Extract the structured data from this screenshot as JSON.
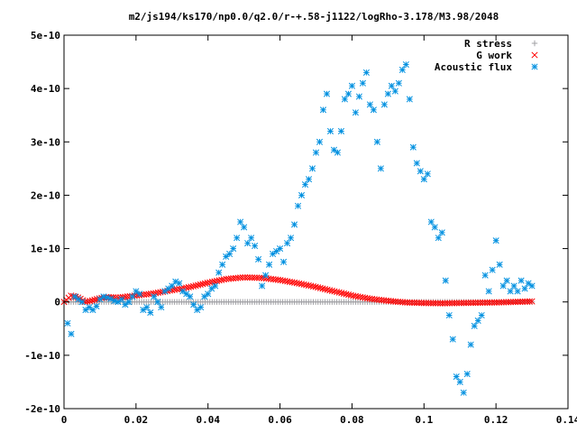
{
  "chart_data": {
    "type": "scatter",
    "title": "m2/js194/ks170/np0.0/q2.0/r-+.58-j1122/logRho-3.178/M3.98/2048",
    "xlabel": "",
    "ylabel": "",
    "xlim": [
      0,
      0.14
    ],
    "ylim": [
      -2e-10,
      5e-10
    ],
    "x_ticks": [
      {
        "value": 0,
        "label": "0"
      },
      {
        "value": 0.02,
        "label": "0.02"
      },
      {
        "value": 0.04,
        "label": "0.04"
      },
      {
        "value": 0.06,
        "label": "0.06"
      },
      {
        "value": 0.08,
        "label": "0.08"
      },
      {
        "value": 0.1,
        "label": "0.1"
      },
      {
        "value": 0.12,
        "label": "0.12"
      },
      {
        "value": 0.14,
        "label": "0.14"
      }
    ],
    "y_ticks": [
      {
        "value": -2e-10,
        "label": "-2e-10"
      },
      {
        "value": -1e-10,
        "label": "-1e-10"
      },
      {
        "value": 0,
        "label": "0"
      },
      {
        "value": 1e-10,
        "label": "1e-10"
      },
      {
        "value": 2e-10,
        "label": "2e-10"
      },
      {
        "value": 3e-10,
        "label": "3e-10"
      },
      {
        "value": 4e-10,
        "label": "4e-10"
      },
      {
        "value": 5e-10,
        "label": "5e-10"
      }
    ],
    "grid": false,
    "legend_position": "top-right",
    "series": [
      {
        "name": "R stress",
        "marker": "plus",
        "color": "#a0a0a4",
        "x_range": [
          0,
          0.13
        ],
        "n_points": 200,
        "y_constant": 0
      },
      {
        "name": "G work",
        "marker": "cross",
        "color": "#ff0000",
        "x": [
          0,
          0.002,
          0.004,
          0.006,
          0.008,
          0.01,
          0.012,
          0.015,
          0.02,
          0.025,
          0.03,
          0.035,
          0.04,
          0.045,
          0.05,
          0.055,
          0.06,
          0.065,
          0.07,
          0.075,
          0.08,
          0.085,
          0.09,
          0.095,
          0.1,
          0.105,
          0.11,
          0.115,
          0.12,
          0.125,
          0.13
        ],
        "y": [
          0,
          1.2e-11,
          8e-12,
          0,
          3e-12,
          7e-12,
          9e-12,
          8e-12,
          1.2e-11,
          1.6e-11,
          2.2e-11,
          2.8e-11,
          3.6e-11,
          4.3e-11,
          4.6e-11,
          4.5e-11,
          4.1e-11,
          3.5e-11,
          2.8e-11,
          2e-11,
          1.2e-11,
          6e-12,
          2e-12,
          -1e-12,
          -2e-12,
          -2.5e-12,
          -2e-12,
          -1.5e-12,
          -1e-12,
          0,
          1e-12
        ],
        "n_points": 200
      },
      {
        "name": "Acoustic flux",
        "marker": "star",
        "color": "#0090e0",
        "x": [
          0.001,
          0.002,
          0.003,
          0.004,
          0.005,
          0.006,
          0.007,
          0.008,
          0.009,
          0.01,
          0.011,
          0.012,
          0.013,
          0.014,
          0.015,
          0.016,
          0.017,
          0.018,
          0.019,
          0.02,
          0.021,
          0.022,
          0.023,
          0.024,
          0.025,
          0.026,
          0.027,
          0.028,
          0.029,
          0.03,
          0.031,
          0.032,
          0.033,
          0.034,
          0.035,
          0.036,
          0.037,
          0.038,
          0.039,
          0.04,
          0.041,
          0.042,
          0.043,
          0.044,
          0.045,
          0.046,
          0.047,
          0.048,
          0.049,
          0.05,
          0.051,
          0.052,
          0.053,
          0.054,
          0.055,
          0.056,
          0.057,
          0.058,
          0.059,
          0.06,
          0.061,
          0.062,
          0.063,
          0.064,
          0.065,
          0.066,
          0.067,
          0.068,
          0.069,
          0.07,
          0.071,
          0.072,
          0.073,
          0.074,
          0.075,
          0.076,
          0.077,
          0.078,
          0.079,
          0.08,
          0.081,
          0.082,
          0.083,
          0.084,
          0.085,
          0.086,
          0.087,
          0.088,
          0.089,
          0.09,
          0.091,
          0.092,
          0.093,
          0.094,
          0.095,
          0.096,
          0.097,
          0.098,
          0.099,
          0.1,
          0.101,
          0.102,
          0.103,
          0.104,
          0.105,
          0.106,
          0.107,
          0.108,
          0.109,
          0.11,
          0.111,
          0.112,
          0.113,
          0.114,
          0.115,
          0.116,
          0.117,
          0.118,
          0.119,
          0.12,
          0.121,
          0.122,
          0.123,
          0.124,
          0.125,
          0.126,
          0.127,
          0.128,
          0.129,
          0.13
        ],
        "y": [
          -4e-11,
          -6e-11,
          1e-11,
          5e-12,
          0,
          -1.5e-11,
          -1e-11,
          -1.5e-11,
          -8e-12,
          5e-12,
          1e-11,
          8e-12,
          6e-12,
          2e-12,
          0,
          5e-12,
          -5e-12,
          0,
          1e-11,
          2e-11,
          1.5e-11,
          -1.5e-11,
          -1e-11,
          -2e-11,
          1e-11,
          0,
          -1e-11,
          2e-11,
          2.5e-11,
          3e-11,
          3.8e-11,
          3.5e-11,
          2e-11,
          1.5e-11,
          1e-11,
          -5e-12,
          -1.5e-11,
          -1e-11,
          1e-11,
          1.5e-11,
          2.5e-11,
          3e-11,
          5.5e-11,
          7e-11,
          8.5e-11,
          9e-11,
          1e-10,
          1.2e-10,
          1.5e-10,
          1.4e-10,
          1.1e-10,
          1.2e-10,
          1.05e-10,
          8e-11,
          3e-11,
          5e-11,
          7e-11,
          9e-11,
          9.5e-11,
          1e-10,
          7.5e-11,
          1.1e-10,
          1.2e-10,
          1.45e-10,
          1.8e-10,
          2e-10,
          2.2e-10,
          2.3e-10,
          2.5e-10,
          2.8e-10,
          3e-10,
          3.6e-10,
          3.9e-10,
          3.2e-10,
          2.85e-10,
          2.8e-10,
          3.2e-10,
          3.8e-10,
          3.9e-10,
          4.05e-10,
          3.55e-10,
          3.85e-10,
          4.1e-10,
          4.3e-10,
          3.7e-10,
          3.6e-10,
          3e-10,
          2.5e-10,
          3.7e-10,
          3.9e-10,
          4.05e-10,
          3.95e-10,
          4.1e-10,
          4.35e-10,
          4.45e-10,
          3.8e-10,
          2.9e-10,
          2.6e-10,
          2.45e-10,
          2.3e-10,
          2.4e-10,
          1.5e-10,
          1.4e-10,
          1.2e-10,
          1.3e-10,
          4e-11,
          -2.5e-11,
          -7e-11,
          -1.4e-10,
          -1.5e-10,
          -1.7e-10,
          -1.35e-10,
          -8e-11,
          -4.5e-11,
          -3.5e-11,
          -2.5e-11,
          5e-11,
          2e-11,
          6e-11,
          1.15e-10,
          7e-11,
          3e-11,
          4e-11,
          2e-11,
          3e-11,
          2e-11,
          4e-11,
          2.5e-11,
          3.5e-11,
          3e-11
        ]
      }
    ]
  }
}
